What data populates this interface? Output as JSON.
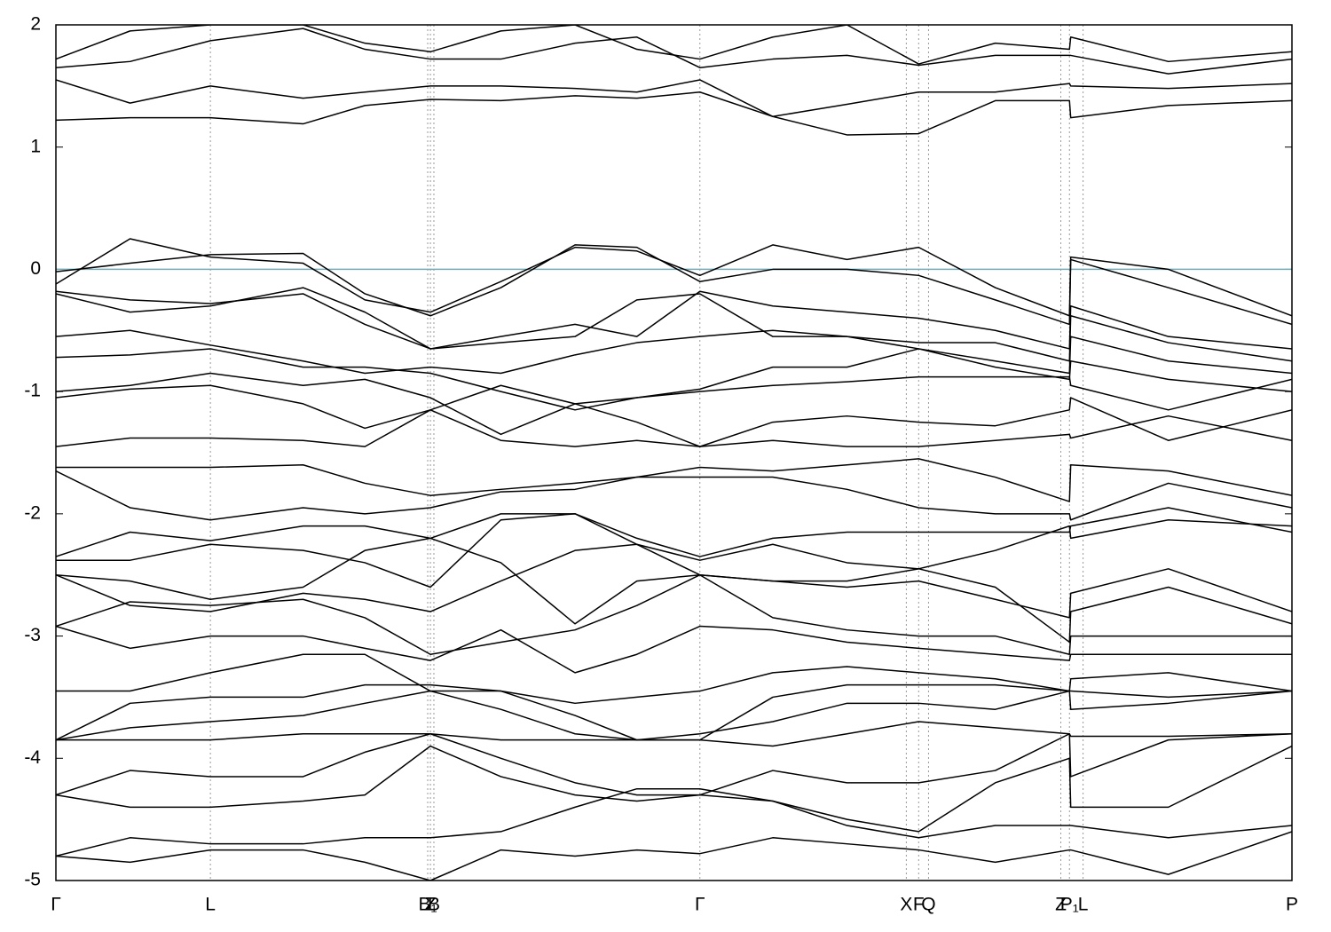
{
  "chart_data": {
    "type": "line",
    "x": [
      0,
      6,
      12.5,
      20,
      25,
      30.3,
      36,
      42,
      47,
      52.1,
      58,
      64,
      69.8,
      76,
      82,
      82.1,
      90,
      100
    ],
    "xlim": [
      0,
      100
    ],
    "xticks": [
      {
        "value": 0,
        "label": "Γ"
      },
      {
        "value": 12.5,
        "label": "L"
      },
      {
        "value": 30.08,
        "label": "B₁"
      },
      {
        "value": 30.3,
        "label": "Z"
      },
      {
        "value": 30.58,
        "label": "B"
      },
      {
        "value": 52.1,
        "label": "Γ"
      },
      {
        "value": 68.8,
        "label": "X"
      },
      {
        "value": 69.8,
        "label": "F"
      },
      {
        "value": 70.6,
        "label": "Q"
      },
      {
        "value": 81.3,
        "label": "Z"
      },
      {
        "value": 82.0,
        "label": "P₁"
      },
      {
        "value": 83.1,
        "label": "L"
      },
      {
        "value": 100,
        "label": "P"
      }
    ],
    "ylim": [
      -5,
      2
    ],
    "yticks": [
      2,
      1,
      0,
      -1,
      -2,
      -3,
      -4,
      -5
    ],
    "grid": "x-dotted",
    "color": "#000000",
    "hline": {
      "value": 0,
      "color": "#5fb3c9"
    },
    "series": [
      {
        "values": [
          1.22,
          1.24,
          1.24,
          1.19,
          1.34,
          1.39,
          1.38,
          1.42,
          1.4,
          1.45,
          1.25,
          1.1,
          1.11,
          1.38,
          1.38,
          1.24,
          1.34,
          1.38
        ]
      },
      {
        "values": [
          1.55,
          1.36,
          1.5,
          1.4,
          1.45,
          1.5,
          1.5,
          1.48,
          1.45,
          1.55,
          1.25,
          1.35,
          1.45,
          1.45,
          1.52,
          1.5,
          1.48,
          1.52
        ]
      },
      {
        "values": [
          1.65,
          1.7,
          1.87,
          1.97,
          1.8,
          1.72,
          1.72,
          1.85,
          1.9,
          1.65,
          1.72,
          1.75,
          1.67,
          1.75,
          1.75,
          1.75,
          1.6,
          1.72
        ]
      },
      {
        "values": [
          1.72,
          1.95,
          2.0,
          2.0,
          1.85,
          1.78,
          1.95,
          2.0,
          1.8,
          1.72,
          1.9,
          2.0,
          1.68,
          1.85,
          1.8,
          1.9,
          1.7,
          1.78
        ]
      },
      {
        "values": [
          -0.12,
          0.25,
          0.1,
          0.05,
          -0.25,
          -0.35,
          -0.1,
          0.18,
          0.15,
          -0.05,
          0.2,
          0.08,
          0.18,
          -0.15,
          -0.38,
          0.1,
          0.0,
          -0.38
        ]
      },
      {
        "values": [
          -0.02,
          0.05,
          0.12,
          0.13,
          -0.2,
          -0.38,
          -0.15,
          0.2,
          0.18,
          -0.1,
          0.0,
          0.0,
          -0.05,
          -0.25,
          -0.45,
          0.08,
          -0.15,
          -0.45
        ]
      },
      {
        "values": [
          -0.18,
          -0.25,
          -0.28,
          -0.2,
          -0.45,
          -0.65,
          -0.55,
          -0.45,
          -0.55,
          -0.18,
          -0.3,
          -0.35,
          -0.4,
          -0.5,
          -0.65,
          -0.3,
          -0.55,
          -0.65
        ]
      },
      {
        "values": [
          -0.2,
          -0.35,
          -0.3,
          -0.15,
          -0.35,
          -0.65,
          -0.6,
          -0.55,
          -0.25,
          -0.2,
          -0.55,
          -0.55,
          -0.6,
          -0.6,
          -0.75,
          -0.38,
          -0.6,
          -0.75
        ]
      },
      {
        "values": [
          -0.55,
          -0.5,
          -0.62,
          -0.75,
          -0.85,
          -0.8,
          -0.85,
          -0.7,
          -0.6,
          -0.55,
          -0.5,
          -0.55,
          -0.65,
          -0.75,
          -0.85,
          -0.55,
          -0.75,
          -0.85
        ]
      },
      {
        "values": [
          -0.72,
          -0.7,
          -0.65,
          -0.8,
          -0.8,
          -0.85,
          -1.0,
          -1.15,
          -1.05,
          -0.98,
          -0.8,
          -0.8,
          -0.65,
          -0.8,
          -0.9,
          -0.75,
          -0.9,
          -1.0
        ]
      },
      {
        "values": [
          -1.0,
          -0.95,
          -0.85,
          -0.95,
          -0.9,
          -1.05,
          -1.35,
          -1.1,
          -1.05,
          -1.0,
          -0.95,
          -0.92,
          -0.88,
          -0.88,
          -0.88,
          -0.95,
          -1.15,
          -0.9
        ]
      },
      {
        "values": [
          -1.05,
          -0.98,
          -0.95,
          -1.1,
          -1.3,
          -1.15,
          -0.95,
          -1.1,
          -1.25,
          -1.45,
          -1.25,
          -1.2,
          -1.25,
          -1.28,
          -1.15,
          -1.05,
          -1.4,
          -1.15
        ]
      },
      {
        "values": [
          -1.45,
          -1.38,
          -1.38,
          -1.4,
          -1.45,
          -1.15,
          -1.4,
          -1.45,
          -1.4,
          -1.45,
          -1.4,
          -1.45,
          -1.45,
          -1.4,
          -1.35,
          -1.38,
          -1.2,
          -1.4
        ]
      },
      {
        "values": [
          -1.62,
          -1.62,
          -1.62,
          -1.6,
          -1.75,
          -1.85,
          -1.8,
          -1.75,
          -1.7,
          -1.62,
          -1.65,
          -1.6,
          -1.55,
          -1.7,
          -1.9,
          -1.6,
          -1.65,
          -1.85
        ]
      },
      {
        "values": [
          -1.65,
          -1.95,
          -2.05,
          -1.95,
          -2.0,
          -1.95,
          -1.82,
          -1.8,
          -1.7,
          -1.7,
          -1.7,
          -1.8,
          -1.95,
          -2.0,
          -2.0,
          -2.05,
          -1.75,
          -1.95
        ]
      },
      {
        "values": [
          -2.35,
          -2.15,
          -2.22,
          -2.1,
          -2.1,
          -2.2,
          -2.0,
          -2.0,
          -2.2,
          -2.35,
          -2.2,
          -2.15,
          -2.15,
          -2.15,
          -2.15,
          -2.1,
          -1.95,
          -2.15
        ]
      },
      {
        "values": [
          -2.38,
          -2.38,
          -2.25,
          -2.3,
          -2.4,
          -2.6,
          -2.05,
          -2.0,
          -2.25,
          -2.38,
          -2.25,
          -2.4,
          -2.45,
          -2.3,
          -2.1,
          -2.2,
          -2.05,
          -2.1
        ]
      },
      {
        "values": [
          -2.5,
          -2.55,
          -2.7,
          -2.6,
          -2.3,
          -2.2,
          -2.4,
          -2.9,
          -2.55,
          -2.5,
          -2.55,
          -2.6,
          -2.55,
          -2.7,
          -2.85,
          -2.65,
          -2.45,
          -2.8
        ]
      },
      {
        "values": [
          -2.5,
          -2.75,
          -2.8,
          -2.65,
          -2.7,
          -2.8,
          -2.55,
          -2.3,
          -2.25,
          -2.5,
          -2.55,
          -2.55,
          -2.45,
          -2.6,
          -3.05,
          -2.8,
          -2.6,
          -2.9
        ]
      },
      {
        "values": [
          -2.92,
          -2.72,
          -2.75,
          -2.7,
          -2.85,
          -3.15,
          -3.05,
          -2.95,
          -2.75,
          -2.5,
          -2.85,
          -2.95,
          -3.0,
          -3.0,
          -3.15,
          -3.0,
          -3.0,
          -3.0
        ]
      },
      {
        "values": [
          -2.92,
          -3.1,
          -3.0,
          -3.0,
          -3.1,
          -3.2,
          -2.95,
          -3.3,
          -3.15,
          -2.92,
          -2.95,
          -3.05,
          -3.1,
          -3.15,
          -3.2,
          -3.15,
          -3.15,
          -3.15
        ]
      },
      {
        "values": [
          -3.45,
          -3.45,
          -3.3,
          -3.15,
          -3.15,
          -3.45,
          -3.45,
          -3.55,
          -3.5,
          -3.45,
          -3.3,
          -3.25,
          -3.3,
          -3.35,
          -3.45,
          -3.35,
          -3.3,
          -3.45
        ]
      },
      {
        "values": [
          -3.85,
          -3.55,
          -3.5,
          -3.5,
          -3.4,
          -3.4,
          -3.45,
          -3.65,
          -3.85,
          -3.85,
          -3.5,
          -3.4,
          -3.4,
          -3.4,
          -3.45,
          -3.45,
          -3.5,
          -3.45
        ]
      },
      {
        "values": [
          -3.85,
          -3.75,
          -3.7,
          -3.65,
          -3.55,
          -3.45,
          -3.6,
          -3.8,
          -3.85,
          -3.8,
          -3.7,
          -3.55,
          -3.55,
          -3.6,
          -3.45,
          -3.6,
          -3.55,
          -3.45
        ]
      },
      {
        "values": [
          -3.85,
          -3.85,
          -3.85,
          -3.8,
          -3.8,
          -3.8,
          -3.85,
          -3.85,
          -3.85,
          -3.85,
          -3.9,
          -3.8,
          -3.7,
          -3.75,
          -3.8,
          -3.82,
          -3.82,
          -3.8
        ]
      },
      {
        "values": [
          -4.3,
          -4.1,
          -4.15,
          -4.15,
          -3.95,
          -3.8,
          -4.0,
          -4.2,
          -4.3,
          -4.3,
          -4.1,
          -4.2,
          -4.2,
          -4.1,
          -3.8,
          -4.15,
          -3.85,
          -3.8
        ]
      },
      {
        "values": [
          -4.3,
          -4.4,
          -4.4,
          -4.35,
          -4.3,
          -3.9,
          -4.15,
          -4.3,
          -4.35,
          -4.3,
          -4.35,
          -4.5,
          -4.6,
          -4.2,
          -4.0,
          -4.4,
          -4.4,
          -3.9
        ]
      },
      {
        "values": [
          -4.8,
          -4.65,
          -4.7,
          -4.7,
          -4.65,
          -4.65,
          -4.6,
          -4.4,
          -4.25,
          -4.25,
          -4.35,
          -4.55,
          -4.65,
          -4.55,
          -4.55,
          -4.55,
          -4.65,
          -4.55
        ]
      },
      {
        "values": [
          -4.8,
          -4.85,
          -4.75,
          -4.75,
          -4.85,
          -5.0,
          -4.75,
          -4.8,
          -4.75,
          -4.78,
          -4.65,
          -4.7,
          -4.75,
          -4.85,
          -4.75,
          -4.75,
          -4.95,
          -4.6
        ]
      }
    ]
  }
}
